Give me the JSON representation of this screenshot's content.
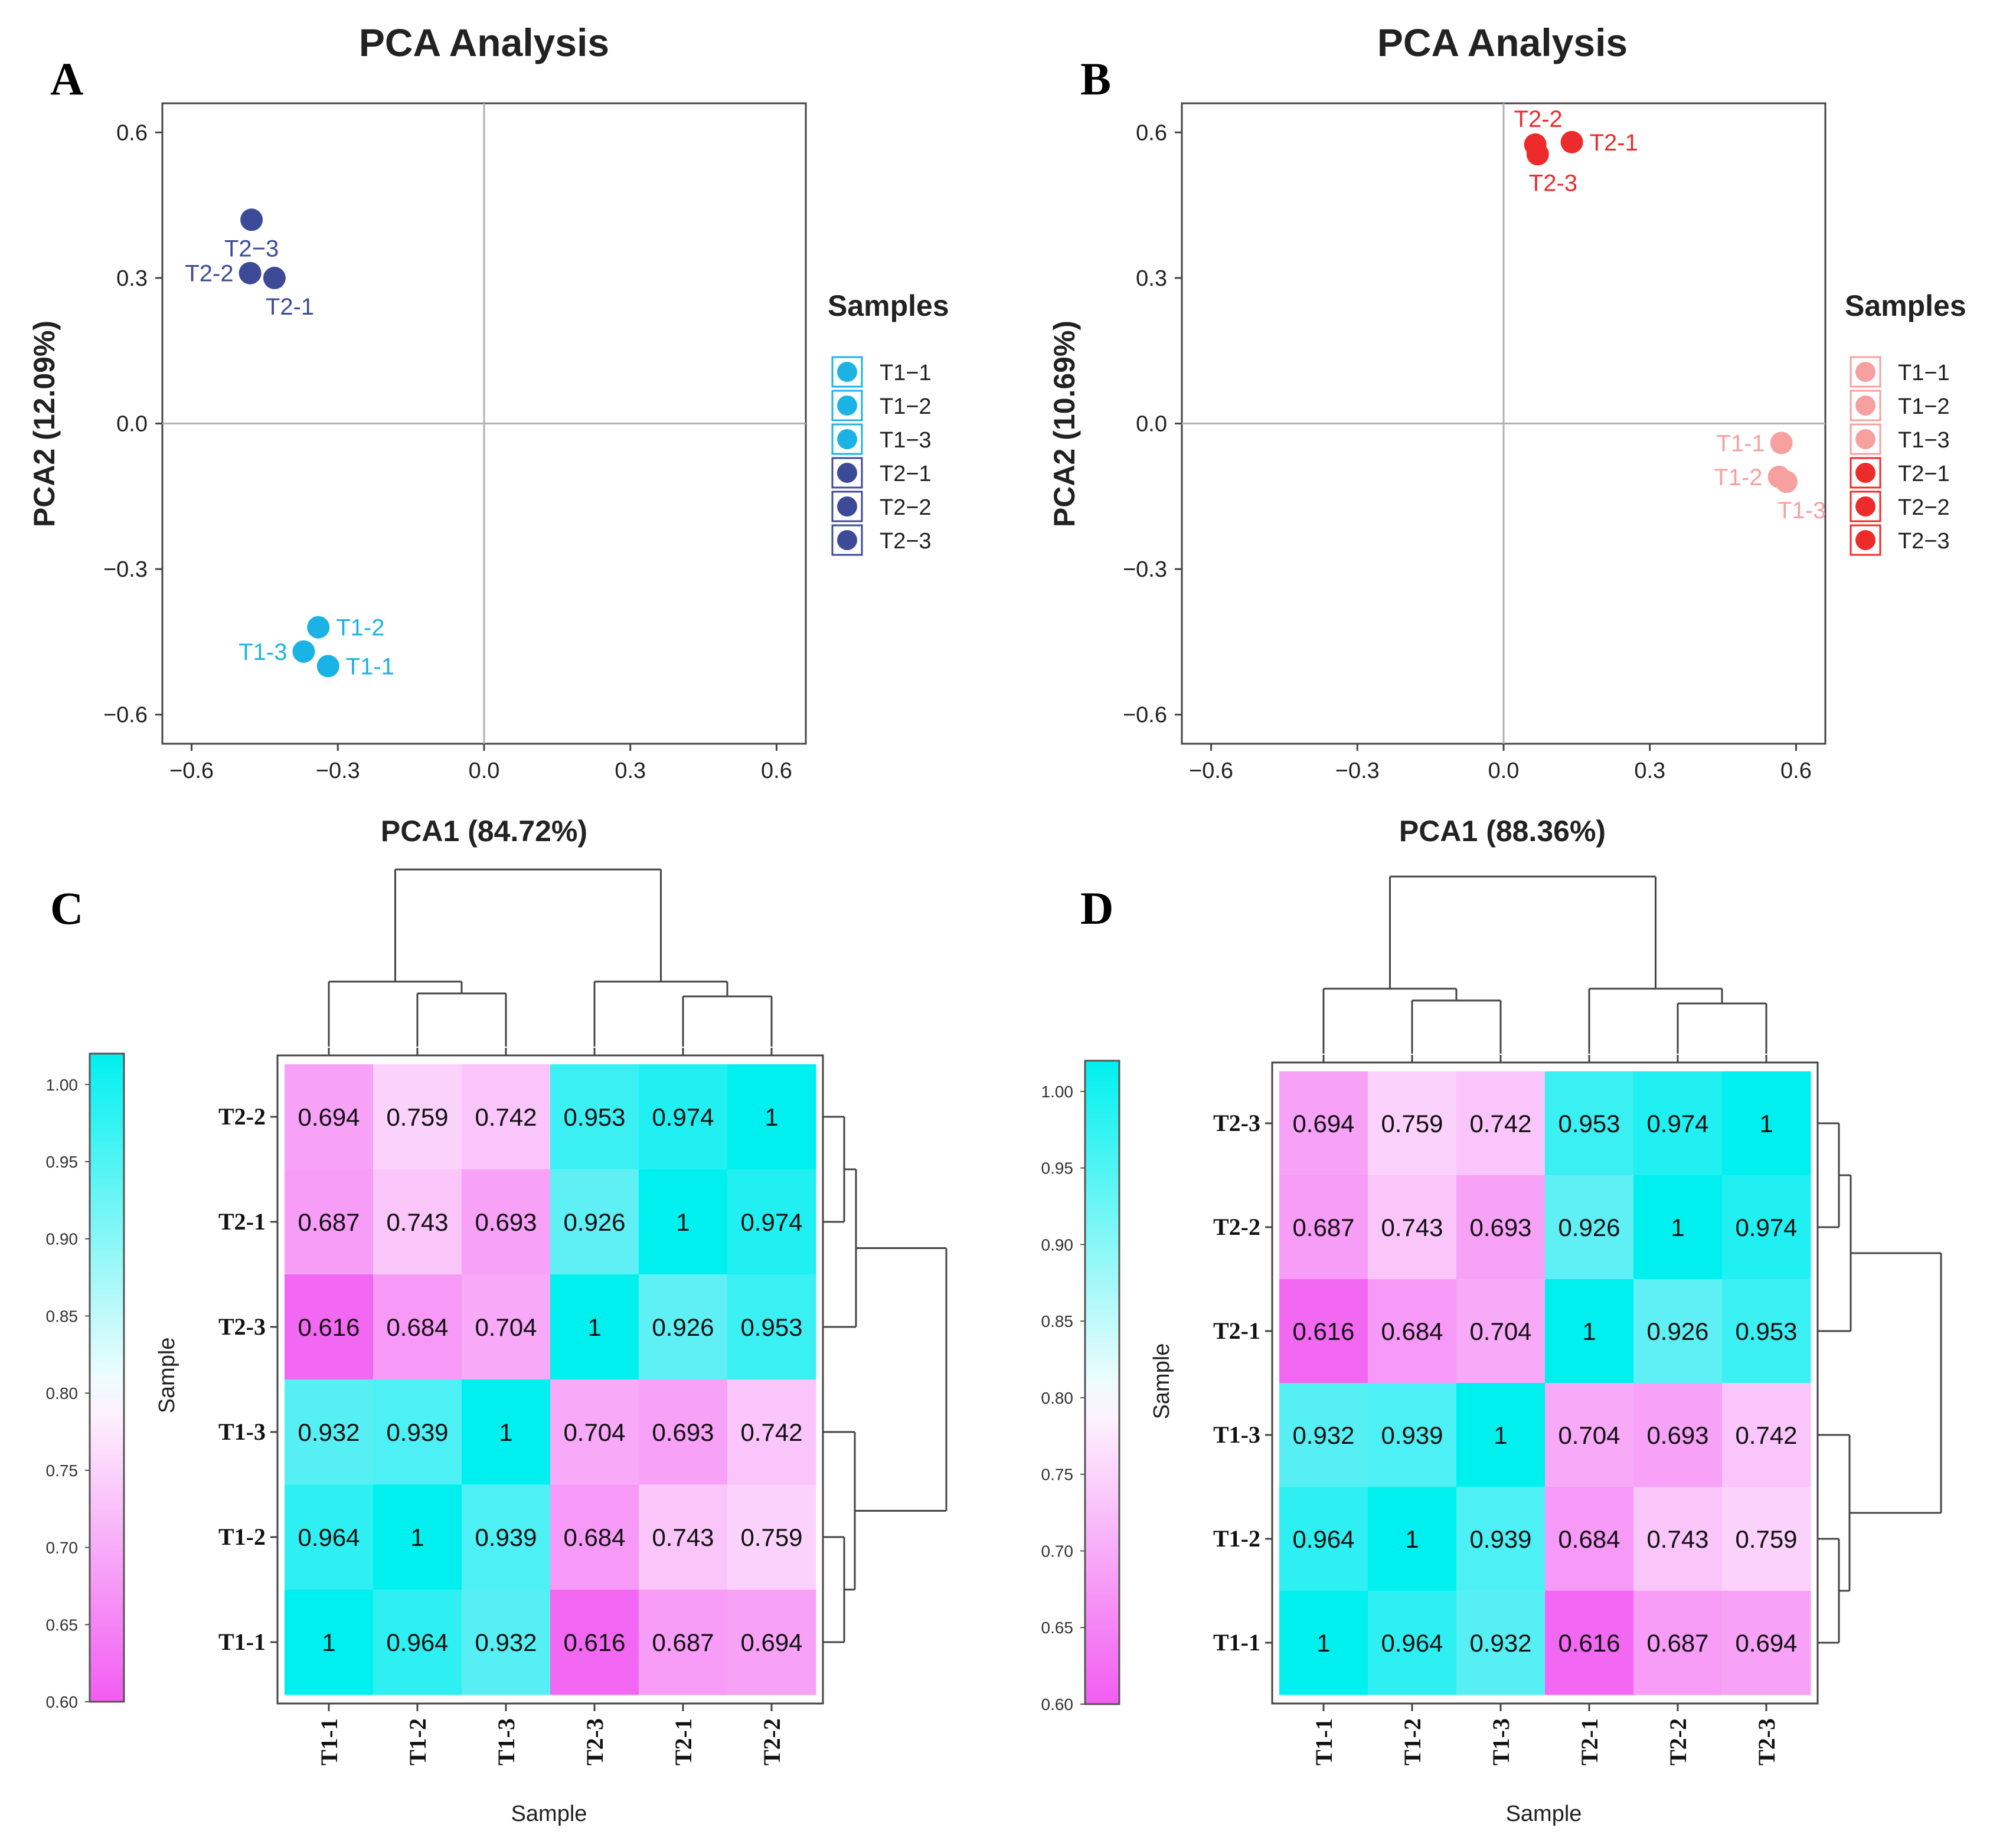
{
  "chart_data": [
    {
      "panel": "A",
      "type": "scatter",
      "title": "PCA Analysis",
      "xlabel": "PCA1 (84.72%)",
      "ylabel": "PCA2 (12.09%)",
      "xlim": [
        -0.66,
        0.66
      ],
      "ylim": [
        -0.66,
        0.66
      ],
      "xticks": [
        -0.6,
        -0.3,
        0.0,
        0.3,
        0.6
      ],
      "yticks": [
        -0.6,
        -0.3,
        0.0,
        0.3,
        0.6
      ],
      "xtick_labels": [
        "−0.6",
        "−0.3",
        "0.0",
        "0.3",
        "0.6"
      ],
      "ytick_labels": [
        "−0.6",
        "−0.3",
        "0.0",
        "0.3",
        "0.6"
      ],
      "legend_title": "Samples",
      "legend_labels": [
        "T1−1",
        "T1−2",
        "T1−3",
        "T2−1",
        "T2−2",
        "T2−3"
      ],
      "legend_colors": [
        "#1bb3e6",
        "#1bb3e6",
        "#1bb3e6",
        "#3d4a98",
        "#3d4a98",
        "#3d4a98"
      ],
      "points": [
        {
          "label": "T2−3",
          "x": -0.477,
          "y": 0.42,
          "color": "#3d4a98",
          "pos": "below"
        },
        {
          "label": "T2-2",
          "x": -0.48,
          "y": 0.31,
          "color": "#3d4a98",
          "pos": "left"
        },
        {
          "label": "T2-1",
          "x": -0.43,
          "y": 0.3,
          "color": "#3d4a98",
          "pos": "below-right"
        },
        {
          "label": "T1-2",
          "x": -0.34,
          "y": -0.42,
          "color": "#1bb3e6",
          "pos": "right"
        },
        {
          "label": "T1-3",
          "x": -0.37,
          "y": -0.47,
          "color": "#1bb3e6",
          "pos": "left"
        },
        {
          "label": "T1-1",
          "x": -0.32,
          "y": -0.5,
          "color": "#1bb3e6",
          "pos": "right"
        }
      ]
    },
    {
      "panel": "B",
      "type": "scatter",
      "title": "PCA Analysis",
      "xlabel": "PCA1 (88.36%)",
      "ylabel": "PCA2 (10.69%)",
      "xlim": [
        -0.66,
        0.66
      ],
      "ylim": [
        -0.66,
        0.66
      ],
      "xticks": [
        -0.6,
        -0.3,
        0.0,
        0.3,
        0.6
      ],
      "yticks": [
        -0.6,
        -0.3,
        0.0,
        0.3,
        0.6
      ],
      "xtick_labels": [
        "−0.6",
        "−0.3",
        "0.0",
        "0.3",
        "0.6"
      ],
      "ytick_labels": [
        "0.6",
        "0.3",
        "0.0",
        "−0.3",
        "−0.6"
      ],
      "legend_title": "Samples",
      "legend_labels": [
        "T1−1",
        "T1−2",
        "T1−3",
        "T2−1",
        "T2−2",
        "T2−3"
      ],
      "legend_colors": [
        "#f7a0a0",
        "#f7a0a0",
        "#f7a0a0",
        "#ee2b2b",
        "#ee2b2b",
        "#ee2b2b"
      ],
      "points": [
        {
          "label": "T2-2",
          "x": 0.065,
          "y": 0.575,
          "color": "#ee2b2b",
          "pos": "above"
        },
        {
          "label": "T2-1",
          "x": 0.14,
          "y": 0.58,
          "color": "#ee2b2b",
          "pos": "right"
        },
        {
          "label": "T2-3",
          "x": 0.07,
          "y": 0.555,
          "color": "#ee2b2b",
          "pos": "below-right"
        },
        {
          "label": "T1-1",
          "x": 0.57,
          "y": -0.04,
          "color": "#f7a0a0",
          "pos": "left"
        },
        {
          "label": "T1-2",
          "x": 0.565,
          "y": -0.11,
          "color": "#f7a0a0",
          "pos": "left"
        },
        {
          "label": "T1-3",
          "x": 0.58,
          "y": -0.12,
          "color": "#f7a0a0",
          "pos": "below-right"
        }
      ]
    },
    {
      "panel": "C",
      "type": "heatmap",
      "row_labels": [
        "T2-2",
        "T2-1",
        "T2-3",
        "T1-3",
        "T1-2",
        "T1-1"
      ],
      "col_labels": [
        "T1-1",
        "T1-2",
        "T1-3",
        "T2-3",
        "T2-1",
        "T2-2"
      ],
      "values": [
        [
          0.694,
          0.759,
          0.742,
          0.953,
          0.974,
          1
        ],
        [
          0.687,
          0.743,
          0.693,
          0.926,
          1,
          0.974
        ],
        [
          0.616,
          0.684,
          0.704,
          1,
          0.926,
          0.953
        ],
        [
          0.932,
          0.939,
          1,
          0.704,
          0.693,
          0.742
        ],
        [
          0.964,
          1,
          0.939,
          0.684,
          0.743,
          0.759
        ],
        [
          1,
          0.964,
          0.932,
          0.616,
          0.687,
          0.694
        ]
      ],
      "xlabel": "Sample",
      "ylabel": "Sample",
      "colorbar_ticks": [
        "1.00",
        "0.95",
        "0.90",
        "0.85",
        "0.80",
        "0.75",
        "0.70",
        "0.65",
        "0.60"
      ],
      "colorbar_range": [
        0.6,
        1.02
      ]
    },
    {
      "panel": "D",
      "type": "heatmap",
      "row_labels": [
        "T2-3",
        "T2-2",
        "T2-1",
        "T1-3",
        "T1-2",
        "T1-1"
      ],
      "col_labels": [
        "T1-1",
        "T1-2",
        "T1-3",
        "T2-1",
        "T2-2",
        "T2-3"
      ],
      "values": [
        [
          0.694,
          0.759,
          0.742,
          0.953,
          0.974,
          1
        ],
        [
          0.687,
          0.743,
          0.693,
          0.926,
          1,
          0.974
        ],
        [
          0.616,
          0.684,
          0.704,
          1,
          0.926,
          0.953
        ],
        [
          0.932,
          0.939,
          1,
          0.704,
          0.693,
          0.742
        ],
        [
          0.964,
          1,
          0.939,
          0.684,
          0.743,
          0.759
        ],
        [
          1,
          0.964,
          0.932,
          0.616,
          0.687,
          0.694
        ]
      ],
      "xlabel": "Sample",
      "ylabel": "Sample",
      "colorbar_ticks": [
        "1.00",
        "0.95",
        "0.90",
        "0.85",
        "0.80",
        "0.75",
        "0.70",
        "0.65",
        "0.60"
      ],
      "colorbar_range": [
        0.6,
        1.02
      ]
    }
  ],
  "panel_letters": [
    "A",
    "B",
    "C",
    "D"
  ],
  "colors": {
    "low": "#f25cf2",
    "mid": "#fdf0fd",
    "high": "#00f0f0",
    "axis": "#333333",
    "zero_line": "#b0b0b0"
  }
}
